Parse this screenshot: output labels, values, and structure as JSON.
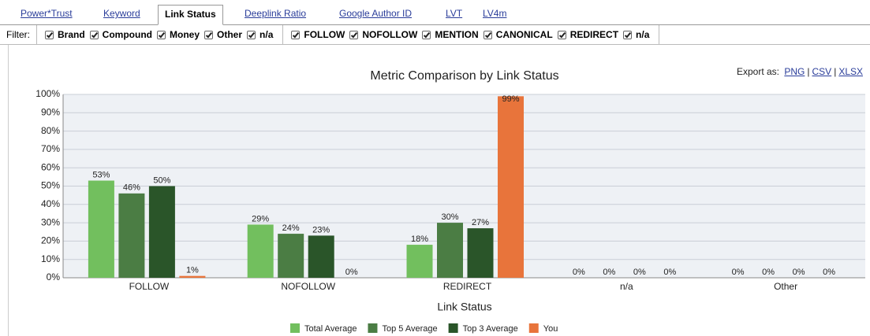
{
  "tabs": [
    "Power*Trust",
    "Keyword",
    "Link Status",
    "Deeplink Ratio",
    "Google Author ID",
    "LVT",
    "LV4m"
  ],
  "active_tab": 2,
  "filter_label": "Filter:",
  "filter_groups": [
    [
      "Brand",
      "Compound",
      "Money",
      "Other",
      "n/a"
    ],
    [
      "FOLLOW",
      "NOFOLLOW",
      "MENTION",
      "CANONICAL",
      "REDIRECT",
      "n/a"
    ]
  ],
  "export_label": "Export as:",
  "export_formats": [
    "PNG",
    "CSV",
    "XLSX"
  ],
  "export_separator": "|",
  "chart_data": {
    "type": "bar",
    "title": "Metric Comparison by Link Status",
    "x_label": "Link Status",
    "categories": [
      "FOLLOW",
      "NOFOLLOW",
      "REDIRECT",
      "n/a",
      "Other"
    ],
    "series": [
      {
        "name": "Total Average",
        "color": "#72bf5e",
        "values": [
          53,
          29,
          18,
          0,
          0
        ],
        "value_labels": [
          "53%",
          "29%",
          "18%",
          "0%",
          "0%"
        ]
      },
      {
        "name": "Top 5 Average",
        "color": "#4b7d44",
        "values": [
          46,
          24,
          30,
          0,
          0
        ],
        "value_labels": [
          "46%",
          "24%",
          "30%",
          "0%",
          "0%"
        ]
      },
      {
        "name": "Top 3 Average",
        "color": "#2a5529",
        "values": [
          50,
          23,
          27,
          0,
          0
        ],
        "value_labels": [
          "50%",
          "23%",
          "27%",
          "0%",
          "0%"
        ]
      },
      {
        "name": "You",
        "color": "#e8743b",
        "values": [
          1,
          0,
          99,
          0,
          0
        ],
        "value_labels": [
          "1%",
          "0%",
          "99%",
          "0%",
          "0%"
        ]
      }
    ],
    "ylim": [
      0,
      100
    ],
    "yticks": [
      {
        "value": 0,
        "label": "0%"
      },
      {
        "value": 10,
        "label": "10%"
      },
      {
        "value": 20,
        "label": "20%"
      },
      {
        "value": 30,
        "label": "30%"
      },
      {
        "value": 40,
        "label": "40%"
      },
      {
        "value": 50,
        "label": "50%"
      },
      {
        "value": 60,
        "label": "60%"
      },
      {
        "value": 70,
        "label": "70%"
      },
      {
        "value": 80,
        "label": "80%"
      },
      {
        "value": 90,
        "label": "90%"
      },
      {
        "value": 100,
        "label": "100%"
      }
    ],
    "grid": true
  }
}
